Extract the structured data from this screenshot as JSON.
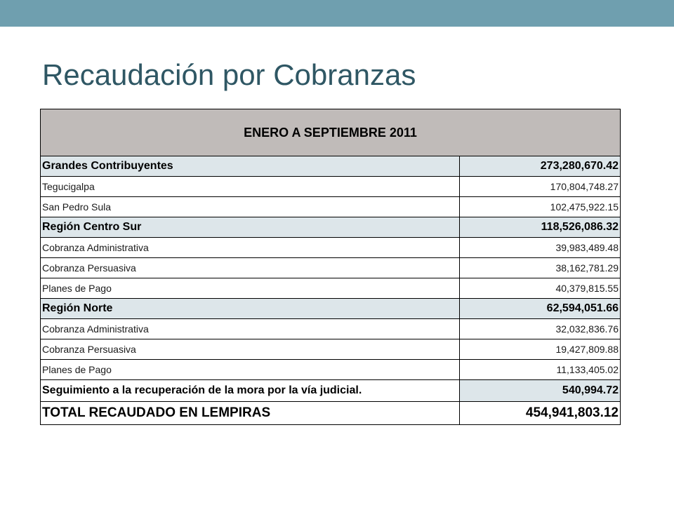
{
  "title": "Recaudación por Cobranzas",
  "table": {
    "period": "ENERO A SEPTIEMBRE 2011",
    "groups": [
      {
        "name": "Grandes Contribuyentes",
        "amount": "273,280,670.42",
        "items": [
          {
            "name": "Tegucigalpa",
            "amount": "170,804,748.27"
          },
          {
            "name": "San Pedro Sula",
            "amount": "102,475,922.15"
          }
        ]
      },
      {
        "name": "Región Centro Sur",
        "amount": "118,526,086.32",
        "items": [
          {
            "name": "Cobranza Administrativa",
            "amount": "39,983,489.48"
          },
          {
            "name": "Cobranza Persuasiva",
            "amount": "38,162,781.29"
          },
          {
            "name": "Planes de Pago",
            "amount": "40,379,815.55"
          }
        ]
      },
      {
        "name": "Región Norte",
        "amount": "62,594,051.66",
        "items": [
          {
            "name": "Cobranza Administrativa",
            "amount": "32,032,836.76"
          },
          {
            "name": "Cobranza Persuasiva",
            "amount": "19,427,809.88"
          },
          {
            "name": "Planes de Pago",
            "amount": "11,133,405.02"
          }
        ]
      }
    ],
    "judicial": {
      "name": "Seguimiento a la recuperación de la mora por la vía judicial.",
      "amount": "540,994.72"
    },
    "total": {
      "name": "TOTAL RECAUDADO EN LEMPIRAS",
      "amount": "454,941,803.12"
    }
  },
  "colors": {
    "top_bar": "#6f9faf",
    "title": "#2f5764",
    "header_fill": "#c0bbb9",
    "group_fill": "#dde6ea"
  }
}
